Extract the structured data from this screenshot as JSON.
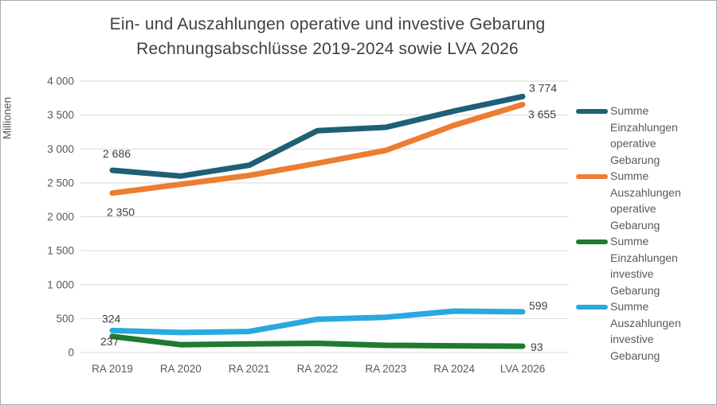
{
  "chart_data": {
    "type": "line",
    "title_lines": [
      "Ein- und Auszahlungen operative und investive Gebarung",
      "Rechnungsabschlüsse 2019-2024 sowie LVA 2026"
    ],
    "ylabel": "Millionen",
    "xlabel": "",
    "grid": true,
    "legend_position": "right",
    "ylim": [
      0,
      4000
    ],
    "y_ticks": [
      {
        "value": 4000,
        "label": "4 000"
      },
      {
        "value": 3500,
        "label": "3 500"
      },
      {
        "value": 3000,
        "label": "3 000"
      },
      {
        "value": 2500,
        "label": "2 500"
      },
      {
        "value": 2000,
        "label": "2 000"
      },
      {
        "value": 1500,
        "label": "1 500"
      },
      {
        "value": 1000,
        "label": "1 000"
      },
      {
        "value": 500,
        "label": "500"
      },
      {
        "value": 0,
        "label": "0"
      }
    ],
    "categories": [
      "RA 2019",
      "RA 2020",
      "RA 2021",
      "RA 2022",
      "RA 2023",
      "RA 2024",
      "LVA 2026"
    ],
    "series": [
      {
        "name": "Summe Einzahlungen operative Gebarung",
        "color": "#1F5F78",
        "values": [
          2686,
          2600,
          2760,
          3270,
          3320,
          3560,
          3774
        ],
        "point_labels": {
          "first": "2 686",
          "last": "3 774"
        }
      },
      {
        "name": "Summe Auszahlungen operative Gebarung",
        "color": "#ED7D31",
        "values": [
          2350,
          2480,
          2610,
          2790,
          2980,
          3350,
          3655
        ],
        "point_labels": {
          "first": "2 350",
          "last": "3 655"
        }
      },
      {
        "name": "Summe Einzahlungen investive Gebarung",
        "color": "#1E7B2F",
        "values": [
          237,
          115,
          125,
          135,
          105,
          98,
          93
        ],
        "point_labels": {
          "first": "237",
          "last": "93"
        }
      },
      {
        "name": "Summe Auszahlungen investive Gebarung",
        "color": "#29A9E1",
        "values": [
          324,
          295,
          310,
          490,
          520,
          610,
          599
        ],
        "point_labels": {
          "first": "324",
          "last": "599"
        }
      }
    ],
    "colors": {
      "gridline": "#D9D9D9",
      "axis_text": "#595959",
      "title_text": "#404040",
      "data_label_text": "#404040"
    }
  }
}
